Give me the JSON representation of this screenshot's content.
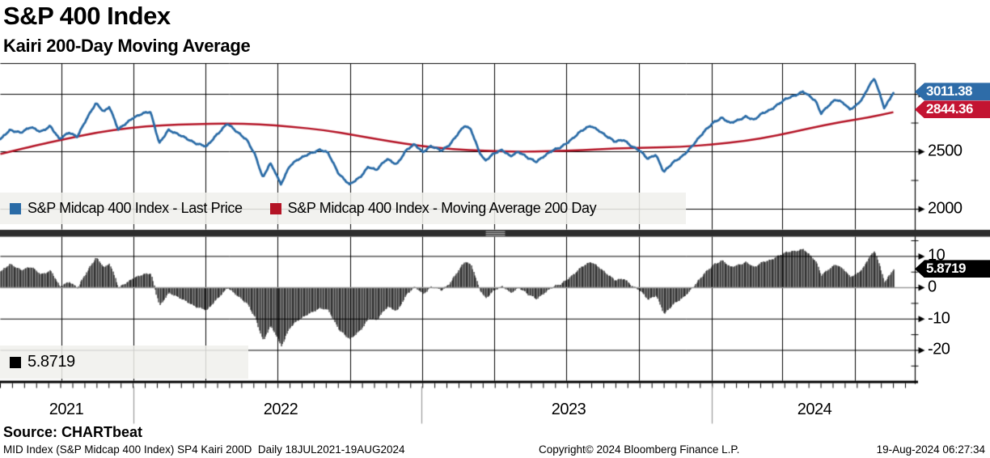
{
  "header": {
    "title": "S&P 400 Index",
    "subtitle": "Kairi 200-Day Moving Average"
  },
  "colors": {
    "price_line": "#2a6ba6",
    "ma_line": "#b41426",
    "price_tag_bg": "#2e6ca8",
    "ma_tag_bg": "#c31432",
    "kairi_tag_bg": "#000000",
    "histogram": "#000000",
    "grid": "#000000",
    "zero_line": "#9a9a9a",
    "divider": "#2d2d2d",
    "divider_grip": "#b0b0b0",
    "year_separator": "#999999",
    "legend_bg": "rgba(240,240,236,0.85)"
  },
  "top_legend": {
    "items": [
      {
        "label": "S&P Midcap 400 Index - Last Price",
        "color": "#2a6ba6"
      },
      {
        "label": "S&P Midcap 400 Index - Moving Average 200 Day",
        "color": "#b41426"
      }
    ]
  },
  "bottom_legend": {
    "label": "5.8719",
    "color": "#000000"
  },
  "tags": {
    "price": "3011.38",
    "ma": "2844.36",
    "kairi": "5.8719"
  },
  "axes": {
    "top": {
      "tick_labels": [
        {
          "value": 2500,
          "label": "2500"
        },
        {
          "value": 2000,
          "label": "2000"
        }
      ],
      "gridlines": [
        3000,
        2500,
        2000
      ],
      "minor_ticks": [
        2750,
        2250
      ],
      "ylim": [
        1824,
        3268
      ]
    },
    "bottom": {
      "tick_labels": [
        {
          "value": 10,
          "label": "10"
        },
        {
          "value": 0,
          "label": "0"
        },
        {
          "value": -10,
          "label": "-10"
        },
        {
          "value": -20,
          "label": "-20"
        }
      ],
      "gridlines": [
        10,
        -10,
        -20
      ],
      "minor_ticks": [
        15,
        5,
        -5,
        -15,
        -25
      ],
      "ylim": [
        -29.7,
        16.3
      ]
    },
    "x": {
      "year_labels": [
        "2021",
        "2022",
        "2023",
        "2024"
      ],
      "range": "18JUL2021-19AUG2024"
    }
  },
  "footer": {
    "source": "Source: CHARTbeat",
    "left": "MID Index (S&P Midcap 400 Index) SP4 Kairi 200D  Daily 18JUL2021-19AUG2024",
    "center": "Copyright© 2024 Bloomberg Finance L.P.",
    "right": "19-Aug-2024 06:27:34"
  },
  "chart_data": [
    {
      "type": "line",
      "panel": "price",
      "title": "S&P 400 Index",
      "x_range": [
        "18JUL2021",
        "19AUG2024"
      ],
      "ylim": [
        1824,
        3268
      ],
      "yticks": [
        3000,
        2500,
        2000
      ],
      "grid": true,
      "legend_position": "bottom-left-overlay",
      "series": [
        {
          "name": "S&P Midcap 400 Index - Last Price",
          "color": "#2a6ba6",
          "last": 3011.38,
          "points": [
            [
              0,
              2610
            ],
            [
              0.011,
              2690
            ],
            [
              0.023,
              2669
            ],
            [
              0.034,
              2711
            ],
            [
              0.045,
              2676
            ],
            [
              0.056,
              2725
            ],
            [
              0.066,
              2606
            ],
            [
              0.077,
              2669
            ],
            [
              0.086,
              2634
            ],
            [
              0.095,
              2761
            ],
            [
              0.107,
              2923
            ],
            [
              0.116,
              2852
            ],
            [
              0.122,
              2894
            ],
            [
              0.132,
              2690
            ],
            [
              0.148,
              2796
            ],
            [
              0.159,
              2831
            ],
            [
              0.168,
              2845
            ],
            [
              0.178,
              2577
            ],
            [
              0.188,
              2690
            ],
            [
              0.197,
              2655
            ],
            [
              0.208,
              2620
            ],
            [
              0.22,
              2570
            ],
            [
              0.231,
              2543
            ],
            [
              0.242,
              2648
            ],
            [
              0.254,
              2746
            ],
            [
              0.264,
              2676
            ],
            [
              0.276,
              2606
            ],
            [
              0.285,
              2479
            ],
            [
              0.294,
              2268
            ],
            [
              0.302,
              2400
            ],
            [
              0.308,
              2324
            ],
            [
              0.314,
              2218
            ],
            [
              0.324,
              2373
            ],
            [
              0.333,
              2430
            ],
            [
              0.344,
              2480
            ],
            [
              0.358,
              2514
            ],
            [
              0.367,
              2490
            ],
            [
              0.379,
              2310
            ],
            [
              0.391,
              2211
            ],
            [
              0.403,
              2280
            ],
            [
              0.412,
              2373
            ],
            [
              0.421,
              2338
            ],
            [
              0.433,
              2437
            ],
            [
              0.444,
              2394
            ],
            [
              0.455,
              2514
            ],
            [
              0.464,
              2563
            ],
            [
              0.473,
              2500
            ],
            [
              0.482,
              2549
            ],
            [
              0.494,
              2507
            ],
            [
              0.503,
              2563
            ],
            [
              0.512,
              2655
            ],
            [
              0.52,
              2725
            ],
            [
              0.527,
              2690
            ],
            [
              0.536,
              2507
            ],
            [
              0.543,
              2423
            ],
            [
              0.552,
              2479
            ],
            [
              0.562,
              2514
            ],
            [
              0.571,
              2465
            ],
            [
              0.58,
              2500
            ],
            [
              0.591,
              2443
            ],
            [
              0.6,
              2415
            ],
            [
              0.609,
              2465
            ],
            [
              0.618,
              2507
            ],
            [
              0.627,
              2535
            ],
            [
              0.639,
              2606
            ],
            [
              0.65,
              2676
            ],
            [
              0.661,
              2725
            ],
            [
              0.67,
              2690
            ],
            [
              0.679,
              2634
            ],
            [
              0.688,
              2585
            ],
            [
              0.698,
              2606
            ],
            [
              0.707,
              2549
            ],
            [
              0.716,
              2507
            ],
            [
              0.725,
              2437
            ],
            [
              0.734,
              2479
            ],
            [
              0.743,
              2324
            ],
            [
              0.754,
              2408
            ],
            [
              0.763,
              2458
            ],
            [
              0.772,
              2528
            ],
            [
              0.781,
              2606
            ],
            [
              0.79,
              2690
            ],
            [
              0.799,
              2761
            ],
            [
              0.808,
              2796
            ],
            [
              0.817,
              2746
            ],
            [
              0.826,
              2775
            ],
            [
              0.835,
              2810
            ],
            [
              0.844,
              2775
            ],
            [
              0.853,
              2831
            ],
            [
              0.862,
              2866
            ],
            [
              0.871,
              2915
            ],
            [
              0.88,
              2958
            ],
            [
              0.889,
              2986
            ],
            [
              0.899,
              3028
            ],
            [
              0.906,
              2986
            ],
            [
              0.913,
              2937
            ],
            [
              0.919,
              2831
            ],
            [
              0.927,
              2901
            ],
            [
              0.935,
              2958
            ],
            [
              0.944,
              2923
            ],
            [
              0.951,
              2866
            ],
            [
              0.958,
              2901
            ],
            [
              0.966,
              2972
            ],
            [
              0.973,
              3077
            ],
            [
              0.979,
              3134
            ],
            [
              0.986,
              2972
            ],
            [
              0.99,
              2880
            ],
            [
              0.994,
              2937
            ],
            [
              1,
              3011.38
            ]
          ]
        },
        {
          "name": "S&P Midcap 400 Index - Moving Average 200 Day",
          "color": "#b41426",
          "last": 2844.36,
          "points": [
            [
              0,
              2480
            ],
            [
              0.036,
              2549
            ],
            [
              0.072,
              2610
            ],
            [
              0.109,
              2669
            ],
            [
              0.145,
              2708
            ],
            [
              0.181,
              2732
            ],
            [
              0.217,
              2741
            ],
            [
              0.254,
              2746
            ],
            [
              0.29,
              2740
            ],
            [
              0.326,
              2718
            ],
            [
              0.362,
              2690
            ],
            [
              0.399,
              2641
            ],
            [
              0.435,
              2592
            ],
            [
              0.471,
              2549
            ],
            [
              0.507,
              2521
            ],
            [
              0.543,
              2507
            ],
            [
              0.58,
              2500
            ],
            [
              0.616,
              2504
            ],
            [
              0.652,
              2514
            ],
            [
              0.688,
              2528
            ],
            [
              0.725,
              2535
            ],
            [
              0.761,
              2542
            ],
            [
              0.797,
              2563
            ],
            [
              0.833,
              2592
            ],
            [
              0.87,
              2641
            ],
            [
              0.906,
              2704
            ],
            [
              0.942,
              2761
            ],
            [
              0.974,
              2800
            ],
            [
              1,
              2844.36
            ]
          ]
        }
      ]
    },
    {
      "type": "bar",
      "panel": "kairi",
      "name": "Kairi 200-Day",
      "last": 5.8719,
      "formula": "(last_price - moving_average_200d) / moving_average_200d * 100",
      "derived_from_series": true,
      "ylim": [
        -29.7,
        16.3
      ],
      "yticks": [
        10,
        0,
        -10,
        -20
      ],
      "bar_color": "#000000"
    }
  ]
}
